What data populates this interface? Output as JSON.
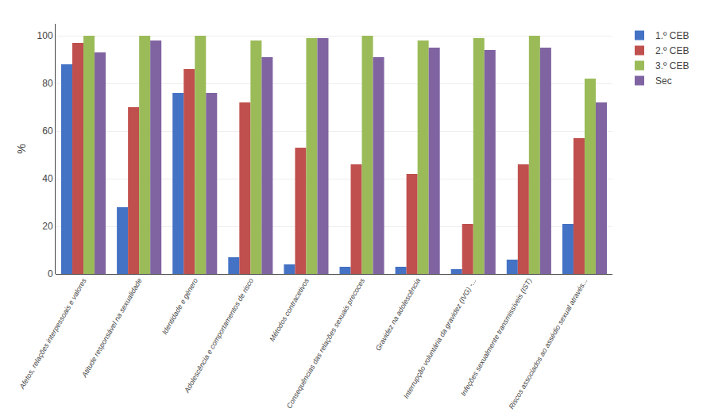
{
  "chart_data": {
    "type": "bar",
    "categories": [
      "Afetos, relações interpessoais e valores",
      "Atitude responsável na sexualidade",
      "Identidade e género",
      "Adolescência e comportamentos de risco",
      "Métodos contracetivos",
      "Consequências das relações sexuais precoces",
      "Gravidez na adolescência",
      "Interrupção voluntária da gravidez (IVG) -...",
      "Infeções sexualmente transmissíveis (IST)",
      "Riscos associados ao assédio sexual através..."
    ],
    "series": [
      {
        "name": "1.º CEB",
        "color": "#4472C4",
        "values": [
          88,
          28,
          76,
          7,
          4,
          3,
          3,
          2,
          6,
          21
        ]
      },
      {
        "name": "2.º CEB",
        "color": "#C0504D",
        "values": [
          97,
          70,
          86,
          72,
          53,
          46,
          42,
          21,
          46,
          57
        ]
      },
      {
        "name": "3.º CEB",
        "color": "#9BBB59",
        "values": [
          100,
          100,
          100,
          98,
          99,
          100,
          98,
          99,
          100,
          82
        ]
      },
      {
        "name": "Sec",
        "color": "#8064A2",
        "values": [
          93,
          98,
          76,
          91,
          99,
          91,
          95,
          94,
          95,
          72
        ]
      }
    ],
    "ylabel": "%",
    "ylim": [
      0,
      105
    ],
    "yticks": [
      0,
      20,
      40,
      60,
      80,
      100
    ],
    "grid": true,
    "legend": "right"
  }
}
